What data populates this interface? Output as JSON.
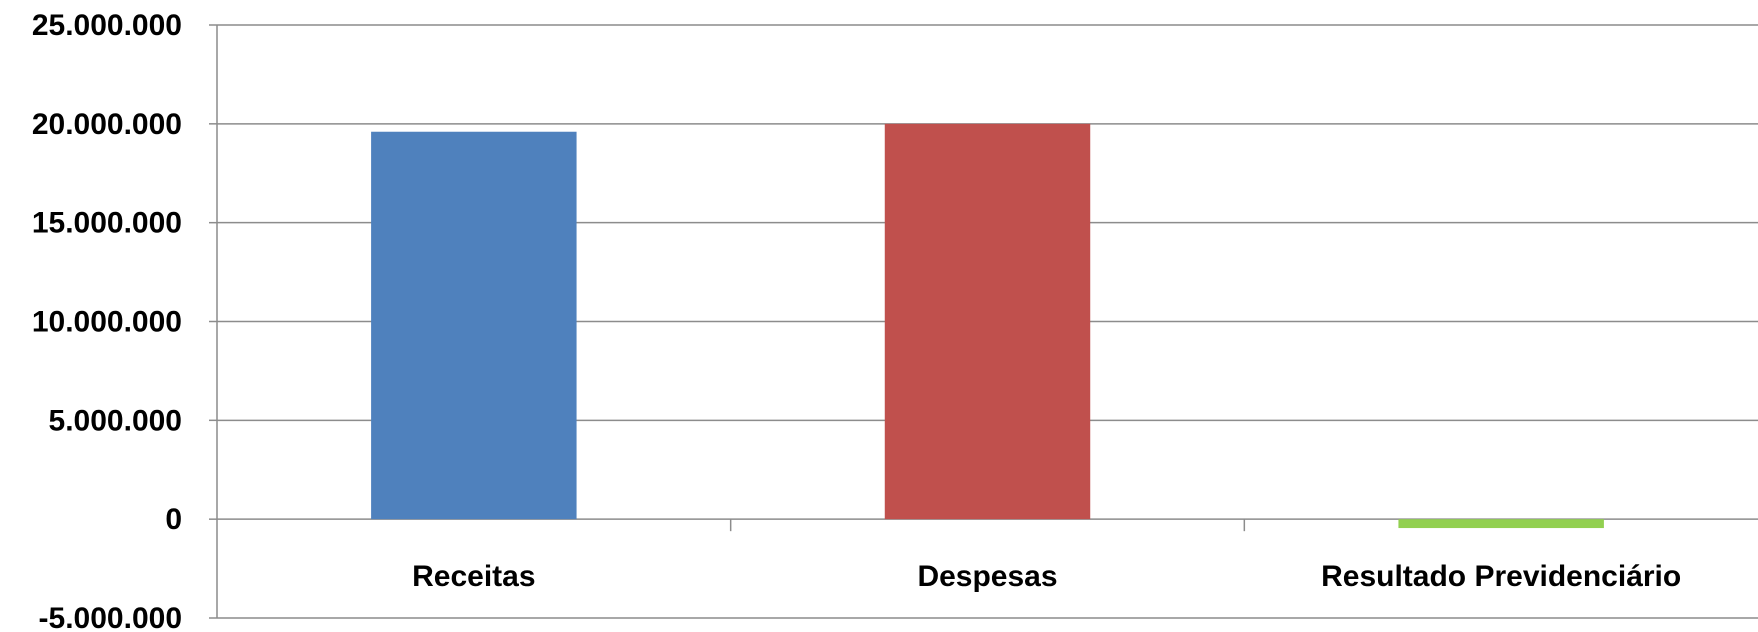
{
  "chart_data": {
    "type": "bar",
    "categories": [
      "Receitas",
      "Despesas",
      "Resultado Previdenciário"
    ],
    "values": [
      19600000,
      20000000,
      -450000
    ],
    "colors": [
      "#4F81BD",
      "#C0504D",
      "#92D050"
    ],
    "y_ticks": [
      "25.000.000",
      "20.000.000",
      "15.000.000",
      "10.000.000",
      "5.000.000",
      "0",
      "-5.000.000"
    ],
    "y_tick_values": [
      25000000,
      20000000,
      15000000,
      10000000,
      5000000,
      0,
      -5000000
    ],
    "ylim": [
      -5000000,
      25000000
    ],
    "grid": true,
    "legend": "none",
    "title": "",
    "xlabel": "",
    "ylabel": ""
  }
}
